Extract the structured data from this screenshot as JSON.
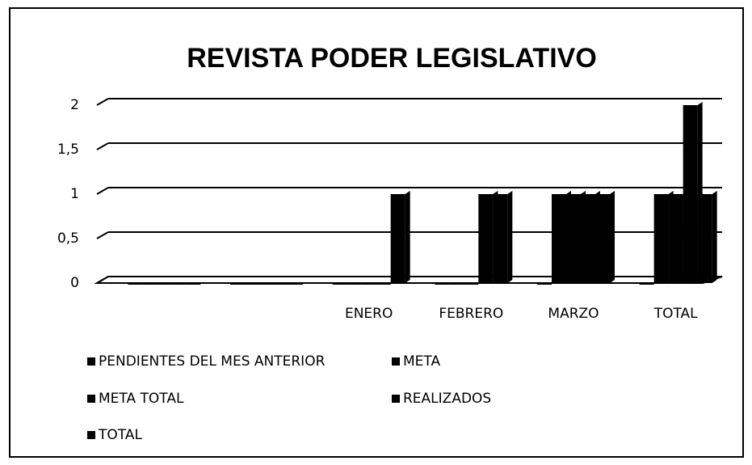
{
  "chart_data": {
    "type": "bar",
    "title": "REVISTA PODER LEGISLATIVO",
    "categories": [
      null,
      null,
      "ENERO",
      "FEBRERO",
      "MARZO",
      "TOTAL"
    ],
    "series": [
      {
        "name": "PENDIENTES DEL MES ANTERIOR",
        "color": "#000000",
        "values": [
          0,
          0,
          0,
          0,
          0,
          0
        ]
      },
      {
        "name": "META",
        "color": "#000000",
        "values": [
          0,
          0,
          0,
          0,
          1,
          1
        ]
      },
      {
        "name": "META TOTAL",
        "color": "#000000",
        "values": [
          0,
          0,
          0,
          0,
          1,
          1
        ]
      },
      {
        "name": "REALIZADOS",
        "color": "#000000",
        "values": [
          0,
          0,
          0,
          1,
          1,
          2
        ]
      },
      {
        "name": "TOTAL",
        "color": "#000000",
        "values": [
          0,
          0,
          1,
          1,
          1,
          1
        ]
      }
    ],
    "ylim": [
      0,
      2
    ],
    "yticks": [
      0,
      {
        "value": 0.5,
        "label": "0,5"
      },
      1,
      {
        "value": 1.5,
        "label": "1,5"
      },
      2
    ],
    "grid": true
  }
}
